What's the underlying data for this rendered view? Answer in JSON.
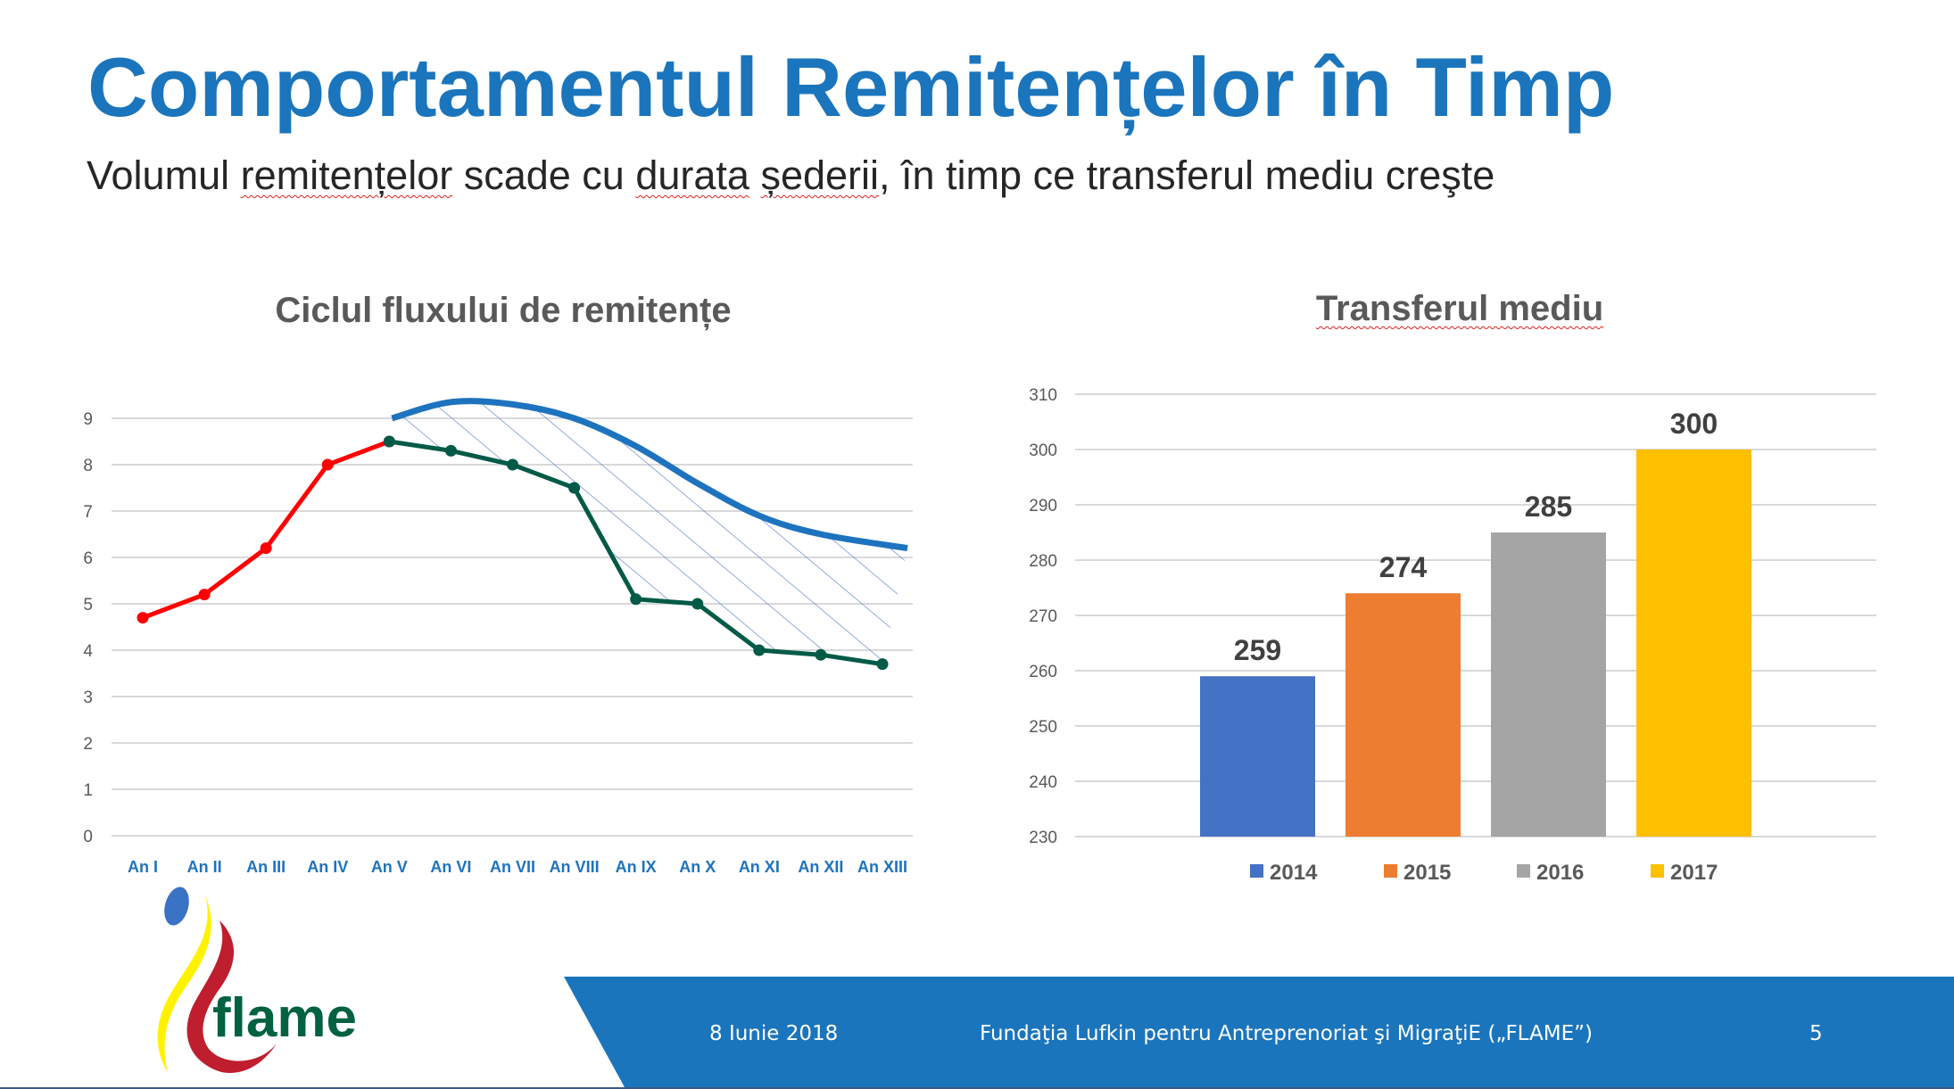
{
  "slide": {
    "title": "Comportamentul Remitențelor în Timp",
    "subtitle_parts": [
      "Volumul ",
      "remitențelor",
      " scade cu ",
      "durata",
      " ",
      "șederii",
      ", în timp ce transferul mediu creşte"
    ]
  },
  "footer": {
    "date": "8 Iunie 2018",
    "organization": "Fundaţia Lufkin pentru Antreprenoriat şi MigraţiE („FLAME”)",
    "page_number": "5",
    "band_color": "#1b75bc"
  },
  "logo": {
    "text": "flame",
    "colors": {
      "dot": "#3a72c4",
      "yellow": "#fff200",
      "red": "#be1e2d",
      "text": "#006241"
    }
  },
  "chart_data": [
    {
      "type": "line",
      "title": "Ciclul fluxului de remitențe",
      "categories": [
        "An I",
        "An II",
        "An III",
        "An IV",
        "An V",
        "An VI",
        "An VII",
        "An VIII",
        "An IX",
        "An X",
        "An XI",
        "An XII",
        "An XIII"
      ],
      "series": [
        {
          "name": "growth",
          "color": "#ff0000",
          "values": [
            4.7,
            5.2,
            6.2,
            8.0,
            8.5,
            null,
            null,
            null,
            null,
            null,
            null,
            null,
            null
          ]
        },
        {
          "name": "decline",
          "color": "#005a46",
          "values": [
            null,
            null,
            null,
            null,
            8.5,
            8.3,
            8.0,
            7.5,
            5.1,
            5.0,
            4.0,
            3.9,
            3.7
          ]
        },
        {
          "name": "envelope",
          "color": "#1e73be",
          "style": "smooth-curve",
          "values": [
            null,
            null,
            null,
            null,
            9.0,
            9.35,
            9.3,
            9.0,
            8.4,
            7.6,
            6.9,
            6.5,
            6.2
          ]
        }
      ],
      "annotation": "hatched area between decline series and envelope curve",
      "yticks": [
        0,
        1,
        2,
        3,
        4,
        5,
        6,
        7,
        8,
        9
      ],
      "ylim": [
        0,
        9
      ],
      "xlabel": "",
      "ylabel": "",
      "grid": true,
      "legend": "none"
    },
    {
      "type": "bar",
      "title": "Transferul mediu",
      "categories": [
        "2014",
        "2015",
        "2016",
        "2017"
      ],
      "values": [
        259,
        274,
        285,
        300
      ],
      "data_labels": [
        "259",
        "274",
        "285",
        "300"
      ],
      "colors": [
        "#4472c4",
        "#ed7d31",
        "#a5a5a5",
        "#ffc000"
      ],
      "yticks": [
        230,
        240,
        250,
        260,
        270,
        280,
        290,
        300,
        310
      ],
      "ylim": [
        230,
        310
      ],
      "xlabel": "",
      "ylabel": "",
      "grid": true,
      "legend": "bottom"
    }
  ]
}
